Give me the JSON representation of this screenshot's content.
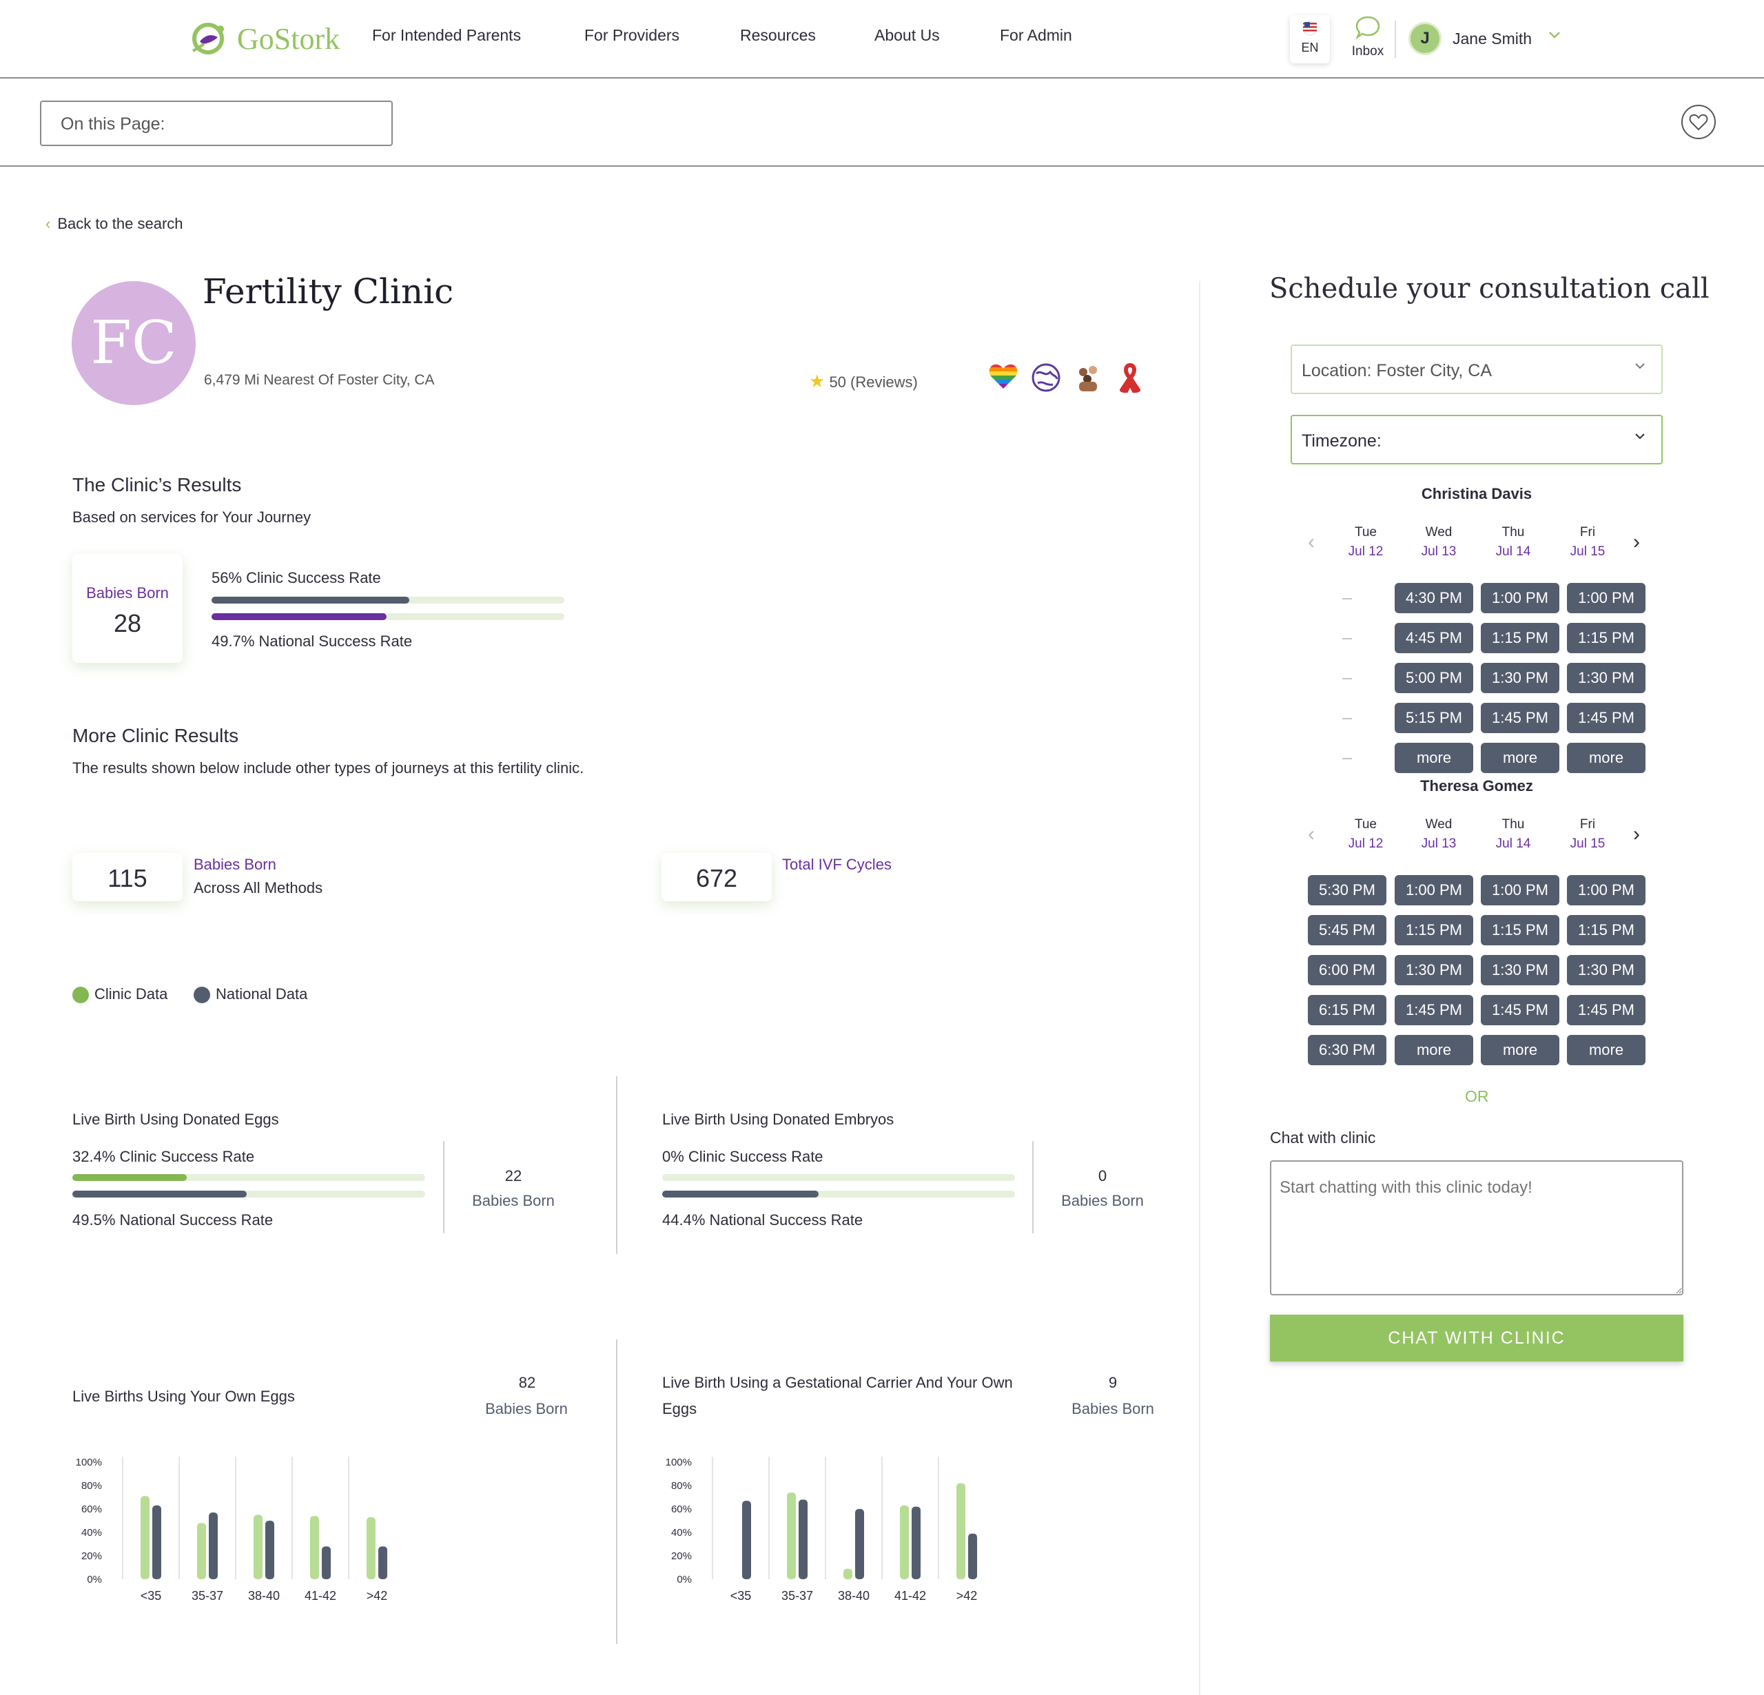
{
  "header": {
    "logo_text": "GoStork",
    "nav": [
      "For Intended Parents",
      "For Providers",
      "Resources",
      "About Us",
      "For Admin"
    ],
    "lang": "EN",
    "inbox": "Inbox",
    "avatar_initial": "J",
    "user_name": "Jane Smith"
  },
  "subbar": {
    "on_this_page": "On this Page:"
  },
  "back": "Back to the search",
  "clinic": {
    "initials": "FC",
    "name": "Fertility Clinic",
    "distance": "6,479 Mi Nearest Of Foster City, CA",
    "reviews": "50 (Reviews)"
  },
  "results": {
    "title": "The Clinic’s Results",
    "subtitle": "Based on services for Your Journey",
    "babies_label": "Babies Born",
    "babies_value": "28",
    "clinic_rate_label": "56% Clinic Success Rate",
    "clinic_rate": 0.56,
    "national_rate_label": "49.7% National Success Rate",
    "national_rate": 0.497
  },
  "more": {
    "title": "More Clinic Results",
    "subtitle": "The results shown below include other types of journeys at this fertility clinic.",
    "babies_value": "115",
    "babies_label": "Babies Born",
    "babies_sub": "Across All Methods",
    "ivf_value": "672",
    "ivf_label": "Total IVF Cycles"
  },
  "legend": {
    "clinic": "Clinic Data",
    "national": "National Data"
  },
  "colors": {
    "clinic": "#94c462",
    "clinic_light": "#b7dc94",
    "national": "#545d6e",
    "purple": "#6b2fa0",
    "track": "#e6f0dc"
  },
  "donated_eggs": {
    "title": "Live Birth Using Donated Eggs",
    "clinic_label": "32.4% Clinic Success Rate",
    "clinic_rate": 0.324,
    "national_label": "49.5% National Success Rate",
    "national_rate": 0.495,
    "babies_value": "22",
    "babies_label": "Babies Born"
  },
  "donated_embryos": {
    "title": "Live Birth Using Donated Embryos",
    "clinic_label": "0% Clinic Success Rate",
    "clinic_rate": 0,
    "national_label": "44.4% National Success Rate",
    "national_rate": 0.444,
    "babies_value": "0",
    "babies_label": "Babies Born"
  },
  "own_eggs": {
    "title": "Live Births Using Your Own Eggs",
    "babies_value": "82",
    "babies_label": "Babies Born"
  },
  "gestational": {
    "title_line1": "Live Birth Using a Gestational Carrier And Your Own",
    "title_line2": "Eggs",
    "babies_value": "9",
    "babies_label": "Babies Born"
  },
  "chart_data": [
    {
      "type": "bar",
      "categories": [
        "<35",
        "35-37",
        "38-40",
        "41-42",
        ">42"
      ],
      "yticks": [
        "100%",
        "80%",
        "60%",
        "40%",
        "20%",
        "0%"
      ],
      "ylim": [
        0,
        100
      ],
      "series": [
        {
          "name": "Clinic Data",
          "values": [
            71,
            48,
            55,
            54,
            53
          ]
        },
        {
          "name": "National Data",
          "values": [
            63,
            57,
            50,
            28,
            28
          ]
        }
      ]
    },
    {
      "type": "bar",
      "categories": [
        "<35",
        "35-37",
        "38-40",
        "41-42",
        ">42"
      ],
      "yticks": [
        "100%",
        "80%",
        "60%",
        "40%",
        "20%",
        "0%"
      ],
      "ylim": [
        0,
        100
      ],
      "series": [
        {
          "name": "Clinic Data",
          "values": [
            0,
            74,
            9,
            63,
            82
          ]
        },
        {
          "name": "National Data",
          "values": [
            67,
            68,
            60,
            62,
            39
          ]
        }
      ]
    }
  ],
  "schedule": {
    "title": "Schedule your consultation call",
    "location": "Location: Foster City, CA",
    "timezone": "Timezone:",
    "days": [
      {
        "d": "Tue",
        "m": "Jul 12"
      },
      {
        "d": "Wed",
        "m": "Jul 13"
      },
      {
        "d": "Thu",
        "m": "Jul 14"
      },
      {
        "d": "Fri",
        "m": "Jul 15"
      }
    ],
    "providers": [
      {
        "name": "Christina Davis",
        "columns": [
          [],
          [
            "4:30 PM",
            "4:45 PM",
            "5:00 PM",
            "5:15 PM",
            "more"
          ],
          [
            "1:00 PM",
            "1:15 PM",
            "1:30 PM",
            "1:45 PM",
            "more"
          ],
          [
            "1:00 PM",
            "1:15 PM",
            "1:30 PM",
            "1:45 PM",
            "more"
          ]
        ]
      },
      {
        "name": "Theresa Gomez",
        "columns": [
          [
            "5:30 PM",
            "5:45 PM",
            "6:00 PM",
            "6:15 PM",
            "6:30 PM"
          ],
          [
            "1:00 PM",
            "1:15 PM",
            "1:30 PM",
            "1:45 PM",
            "more"
          ],
          [
            "1:00 PM",
            "1:15 PM",
            "1:30 PM",
            "1:45 PM",
            "more"
          ],
          [
            "1:00 PM",
            "1:15 PM",
            "1:30 PM",
            "1:45 PM",
            "more"
          ]
        ]
      }
    ],
    "or": "OR",
    "chat_label": "Chat with clinic",
    "chat_placeholder": "Start chatting with this clinic today!",
    "chat_button": "CHAT WITH CLINIC"
  }
}
